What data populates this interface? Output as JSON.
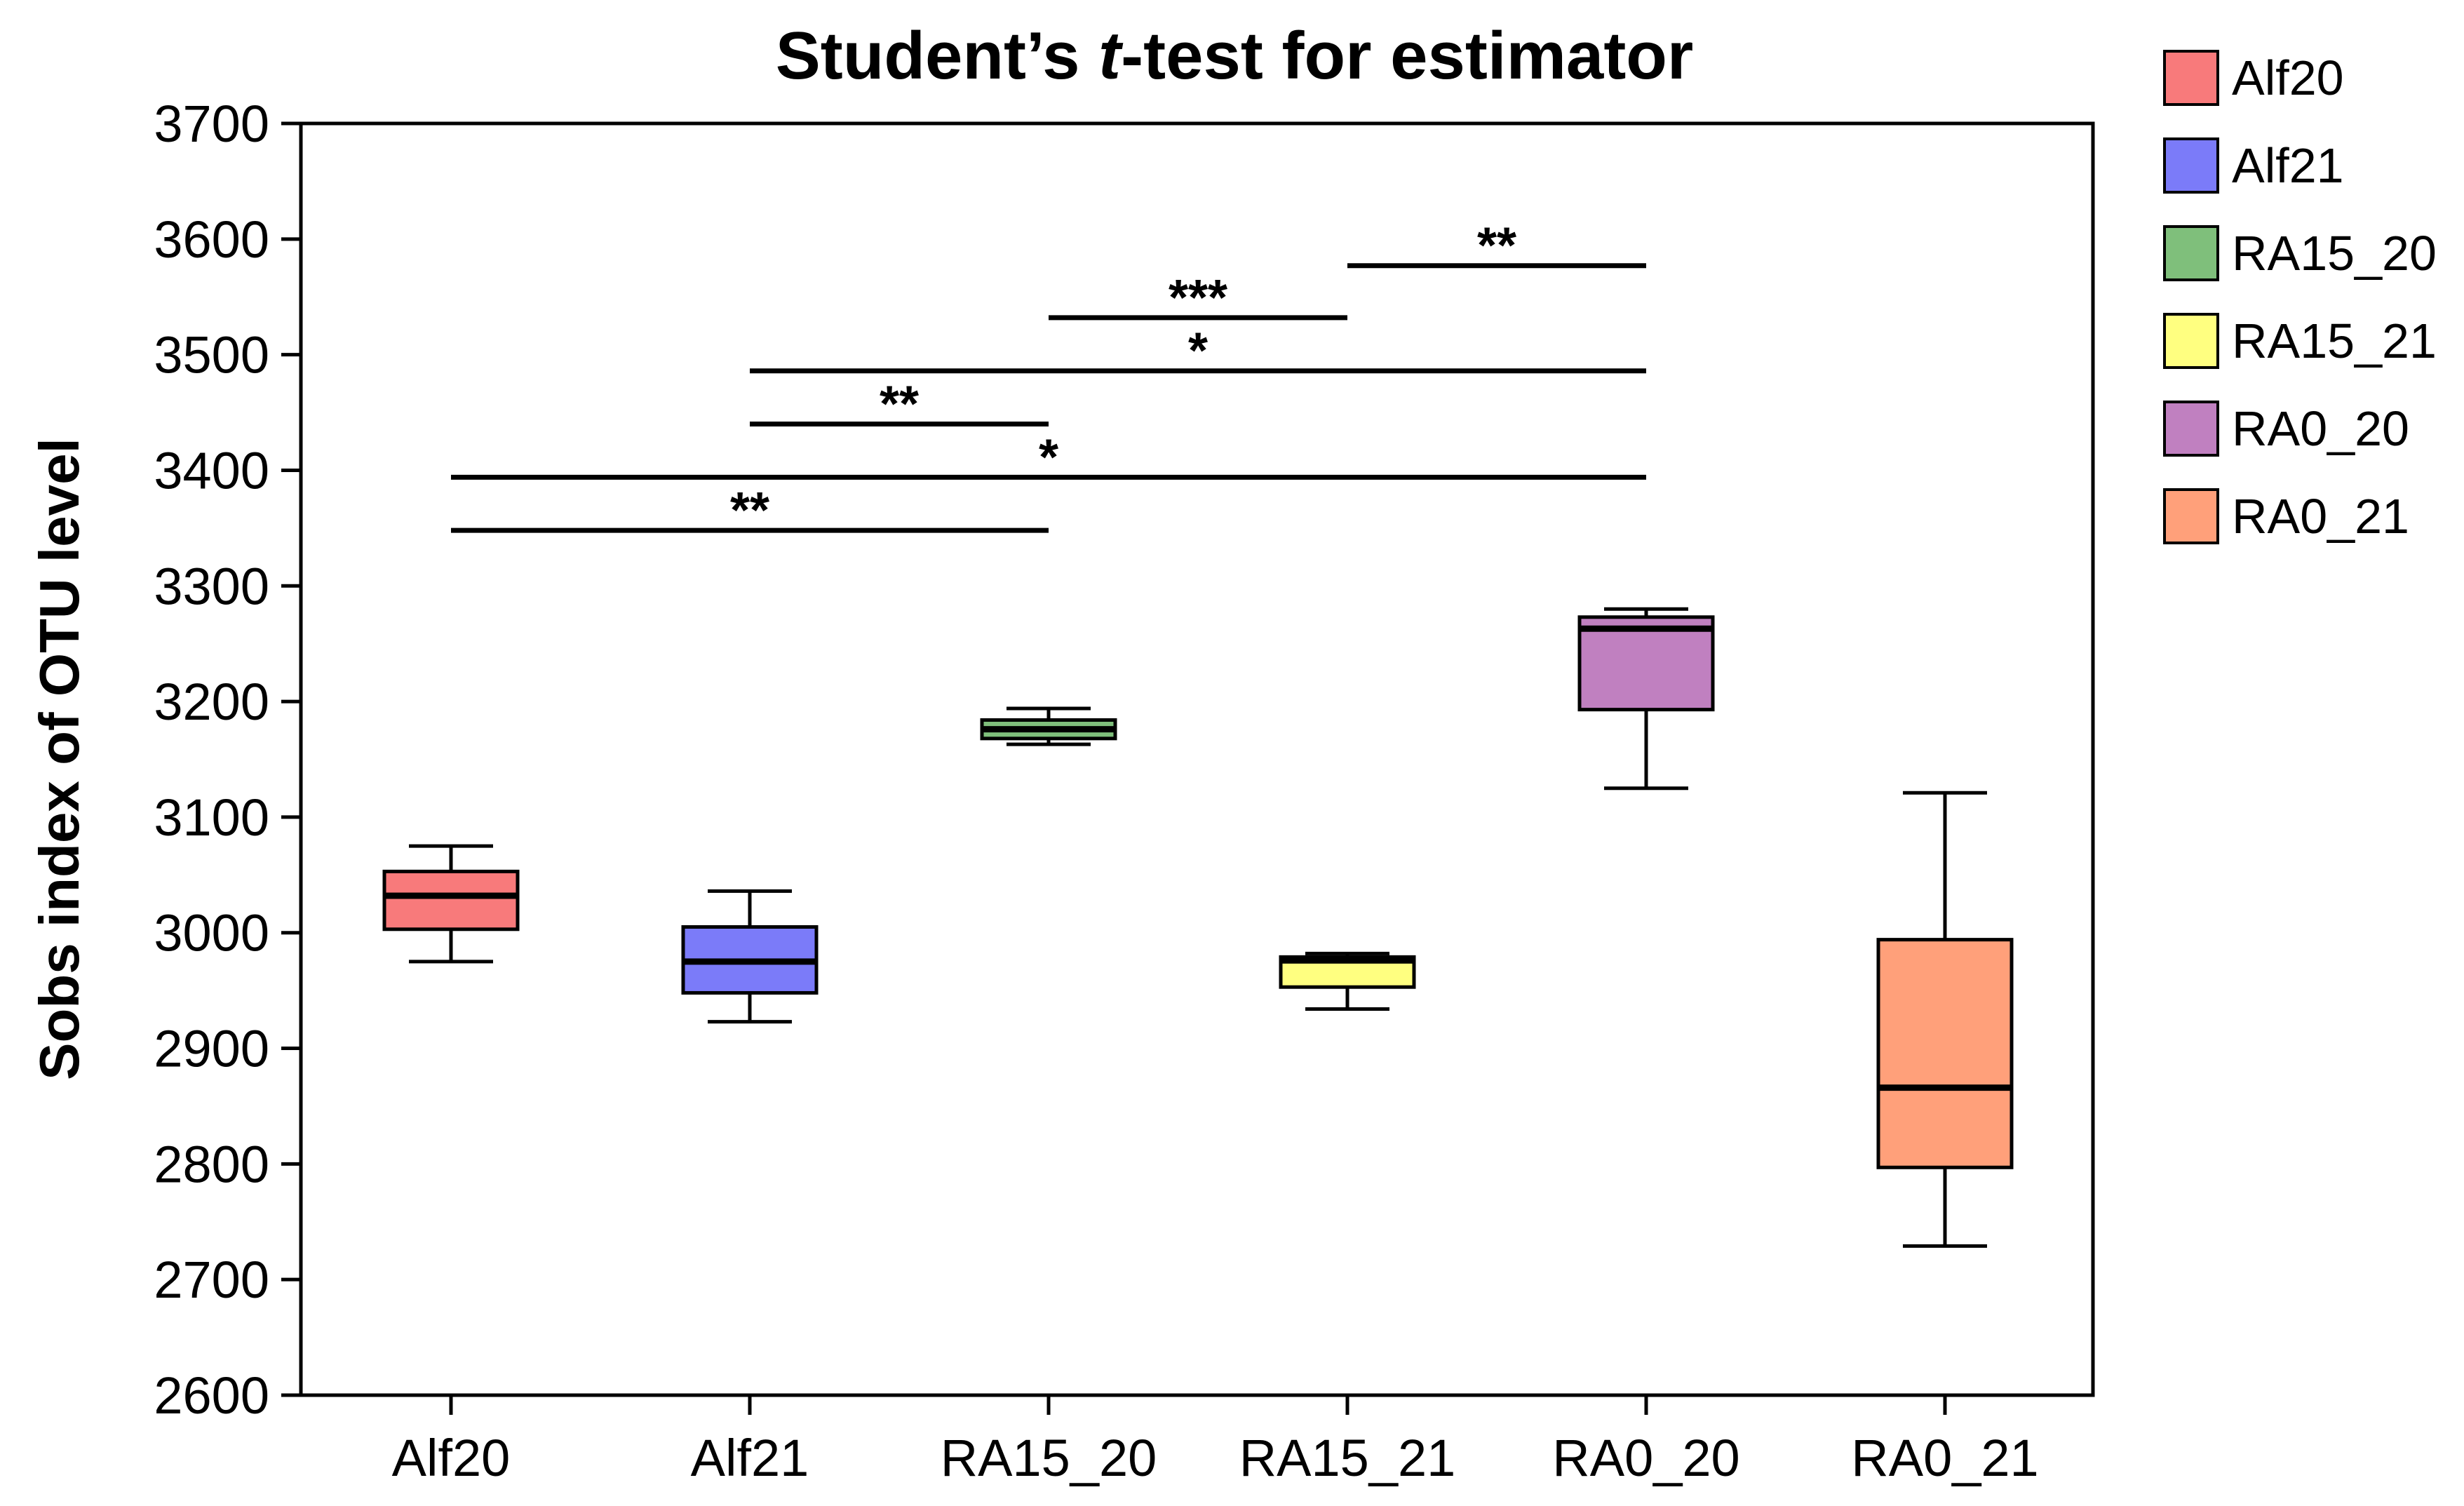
{
  "chart_data": {
    "type": "box",
    "title_parts": [
      "Student’s ",
      "t",
      "-test for estimator"
    ],
    "ylabel": "Sobs index of OTU level",
    "xlabel": "",
    "ylim": [
      2600,
      3700
    ],
    "yticks": [
      2600,
      2700,
      2800,
      2900,
      3000,
      3100,
      3200,
      3300,
      3400,
      3500,
      3600,
      3700
    ],
    "categories": [
      "Alf20",
      "Alf21",
      "RA15_20",
      "RA15_21",
      "RA0_20",
      "RA0_21"
    ],
    "boxes": [
      {
        "name": "Alf20",
        "whisker_low": 2975,
        "q1": 3003,
        "median": 3032,
        "q3": 3053,
        "whisker_high": 3075,
        "color": "#f87a7b"
      },
      {
        "name": "Alf21",
        "whisker_low": 2923,
        "q1": 2948,
        "median": 2975,
        "q3": 3005,
        "whisker_high": 3036,
        "color": "#7b7bf9"
      },
      {
        "name": "RA15_20",
        "whisker_low": 3163,
        "q1": 3168,
        "median": 3176,
        "q3": 3184,
        "whisker_high": 3194,
        "color": "#7fbf7b"
      },
      {
        "name": "RA15_21",
        "whisker_low": 2934,
        "q1": 2953,
        "median": 2976,
        "q3": 2979,
        "whisker_high": 2982,
        "color": "#ffff80"
      },
      {
        "name": "RA0_20",
        "whisker_low": 3125,
        "q1": 3193,
        "median": 3263,
        "q3": 3273,
        "whisker_high": 3280,
        "color": "#c080c0"
      },
      {
        "name": "RA0_21",
        "whisker_low": 2729,
        "q1": 2797,
        "median": 2866,
        "q3": 2994,
        "whisker_high": 3121,
        "color": "#ffa07a"
      }
    ],
    "significance": [
      {
        "from": "Alf20",
        "to": "RA15_20",
        "y": 3348,
        "label": "**"
      },
      {
        "from": "Alf20",
        "to": "RA0_20",
        "y": 3394,
        "label": "*"
      },
      {
        "from": "Alf21",
        "to": "RA15_20",
        "y": 3440,
        "label": "**"
      },
      {
        "from": "Alf21",
        "to": "RA0_20",
        "y": 3486,
        "label": "*"
      },
      {
        "from": "RA15_20",
        "to": "RA15_21",
        "y": 3532,
        "label": "***"
      },
      {
        "from": "RA15_21",
        "to": "RA0_20",
        "y": 3577,
        "label": "**"
      }
    ],
    "legend": [
      {
        "label": "Alf20",
        "color": "#f87a7b"
      },
      {
        "label": "Alf21",
        "color": "#7b7bf9"
      },
      {
        "label": "RA15_20",
        "color": "#7fbf7b"
      },
      {
        "label": "RA15_21",
        "color": "#ffff80"
      },
      {
        "label": "RA0_20",
        "color": "#c080c0"
      },
      {
        "label": "RA0_21",
        "color": "#ffa07a"
      }
    ],
    "legend_position": "right",
    "grid": false
  }
}
